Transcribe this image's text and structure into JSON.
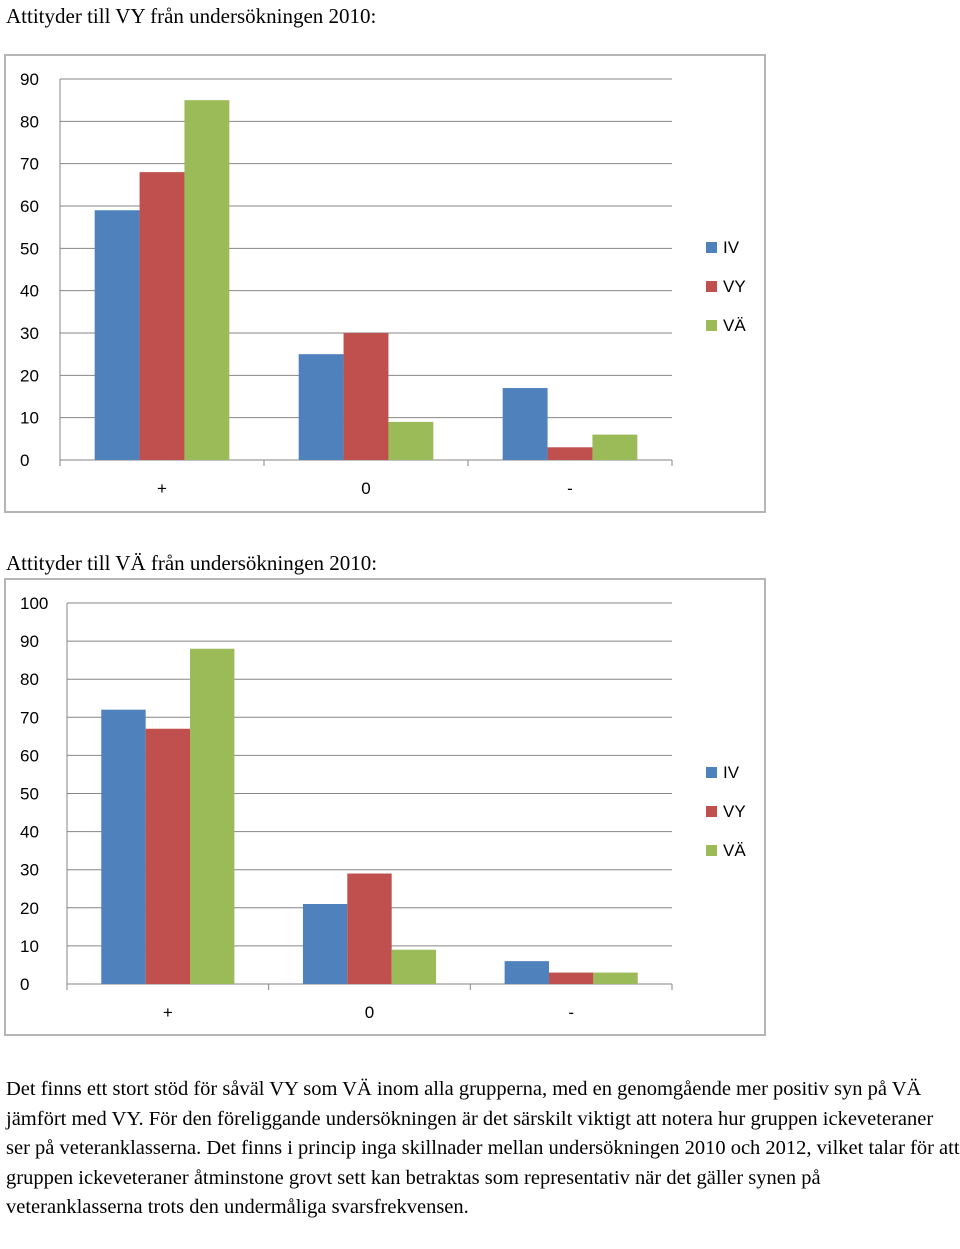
{
  "heading_1": "Attityder till VY från undersökningen 2010:",
  "heading_2": "Attityder till VÄ från undersökningen 2010:",
  "chart_data": [
    {
      "type": "bar",
      "categories": [
        "+",
        "0",
        "-"
      ],
      "series": [
        {
          "name": "IV",
          "values": [
            59,
            25,
            17
          ],
          "color": "#4f81bd"
        },
        {
          "name": "VY",
          "values": [
            68,
            30,
            3
          ],
          "color": "#c0504d"
        },
        {
          "name": "VÄ",
          "values": [
            85,
            9,
            6
          ],
          "color": "#9bbb59"
        }
      ],
      "ylim": [
        0,
        90
      ],
      "yticks": [
        0,
        10,
        20,
        30,
        40,
        50,
        60,
        70,
        80,
        90
      ],
      "grid": true,
      "legend": "right"
    },
    {
      "type": "bar",
      "categories": [
        "+",
        "0",
        "-"
      ],
      "series": [
        {
          "name": "IV",
          "values": [
            72,
            21,
            6
          ],
          "color": "#4f81bd"
        },
        {
          "name": "VY",
          "values": [
            67,
            29,
            3
          ],
          "color": "#c0504d"
        },
        {
          "name": "VÄ",
          "values": [
            88,
            9,
            3
          ],
          "color": "#9bbb59"
        }
      ],
      "ylim": [
        0,
        100
      ],
      "yticks": [
        0,
        10,
        20,
        30,
        40,
        50,
        60,
        70,
        80,
        90,
        100
      ],
      "grid": true,
      "legend": "right"
    }
  ],
  "paragraph": "Det finns ett stort stöd för såväl VY som VÄ inom alla grupperna, med en genomgående mer positiv syn på VÄ jämfört med VY. För den föreliggande undersökningen är det särskilt viktigt att notera hur gruppen ickeveteraner ser på veteranklasserna. Det finns i princip inga skillnader mellan undersökningen 2010 och 2012, vilket talar för att gruppen ickeveteraner åtminstone grovt sett kan betraktas som representativ när det gäller synen på veteranklasserna trots den undermåliga svarsfrekvensen."
}
